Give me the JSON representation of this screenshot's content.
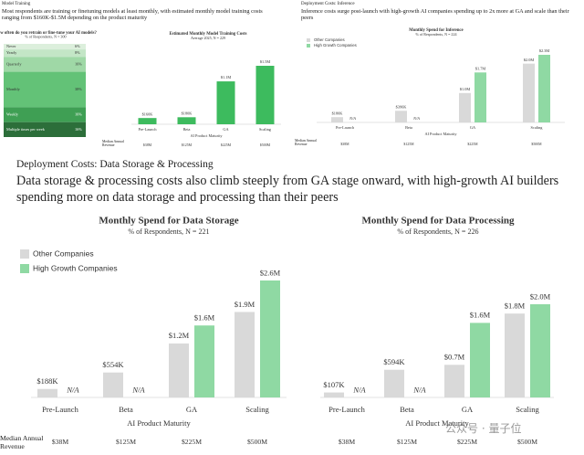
{
  "sections": [
    {
      "label": "Model Training",
      "heading": "Most respondents are training or finetuning models at least monthly, with estimated monthly model training costs ranging from $160K-$1.5M depending on the product maturity"
    },
    {
      "label": "Deployment Costs: Inference",
      "heading": "Inference costs surge post-launch with high-growth AI companies spending up to 2x more at GA and scale than their peers"
    },
    {
      "label": "Deployment Costs: Data Storage & Processing",
      "heading": "Data storage & processing costs also climb steeply from GA stage onward, with high-growth AI builders spending more on data storage and processing than their peers"
    }
  ],
  "watermark": "公众号 · 量子位",
  "chart_data": [
    {
      "type": "stack",
      "title": "How often do you retrain or fine-tune your AI models?",
      "subtitle": "% of Respondents, N = 300",
      "categories": [
        "Never",
        "Yearly",
        "Quarterly",
        "Monthly",
        "Weekly",
        "Multiple times per week"
      ],
      "values": [
        6,
        8,
        16,
        38,
        16,
        16
      ],
      "value_labels": [
        "6%",
        "8%",
        "16%",
        "38%",
        "16%",
        "16%"
      ],
      "colors": [
        "#dcefdc",
        "#c3e6c6",
        "#9fd8a6",
        "#63c277",
        "#3f9f54",
        "#2c6e3a"
      ]
    },
    {
      "type": "bar",
      "title": "Estimated Monthly Model Training Costs",
      "subtitle": "Average 2025, N = 229",
      "categories": [
        "Pre-Launch",
        "Beta",
        "GA",
        "Scaling"
      ],
      "x_label": "AI Product Maturity",
      "values": [
        160000,
        180000,
        1100000,
        1500000
      ],
      "value_labels": [
        "$160K",
        "$180K",
        "$1.1M",
        "$1.5M"
      ],
      "color": "#3dbb5e",
      "revenue_label": "Median Annual Revenue",
      "revenue": [
        "$38M",
        "$125M",
        "$225M",
        "$500M"
      ]
    },
    {
      "type": "grouped_bar",
      "title": "Monthly Spend for Inference",
      "subtitle": "% of Respondents, N = 224",
      "categories": [
        "Pre-Launch",
        "Beta",
        "GA",
        "Scaling"
      ],
      "x_label": "AI Product Maturity",
      "series": [
        {
          "name": "Other Companies",
          "color": "#d9d9d9",
          "values": [
            180000,
            396000,
            1000000,
            2000000
          ],
          "value_labels": [
            "$180K",
            "$396K",
            "$1.0M",
            "$2.0M"
          ]
        },
        {
          "name": "High Growth Companies",
          "color": "#8fd9a3",
          "values": [
            null,
            null,
            1700000,
            2300000
          ],
          "value_labels": [
            "N/A",
            "N/A",
            "$1.7M",
            "$2.3M"
          ]
        }
      ],
      "revenue_label": "Median Annual Revenue",
      "revenue": [
        "$38M",
        "$125M",
        "$225M",
        "$500M"
      ]
    },
    {
      "type": "grouped_bar",
      "title": "Monthly Spend for Data Storage",
      "subtitle": "% of Respondents, N = 221",
      "categories": [
        "Pre-Launch",
        "Beta",
        "GA",
        "Scaling"
      ],
      "x_label": "AI Product Maturity",
      "series": [
        {
          "name": "Other Companies",
          "color": "#d9d9d9",
          "values": [
            188000,
            554000,
            1200000,
            1900000
          ],
          "value_labels": [
            "$188K",
            "$554K",
            "$1.2M",
            "$1.9M"
          ]
        },
        {
          "name": "High Growth Companies",
          "color": "#8fd9a3",
          "values": [
            null,
            null,
            1600000,
            2600000
          ],
          "value_labels": [
            "N/A",
            "N/A",
            "$1.6M",
            "$2.6M"
          ]
        }
      ],
      "revenue_label": "Median Annual Revenue",
      "revenue": [
        "$38M",
        "$125M",
        "$225M",
        "$500M"
      ]
    },
    {
      "type": "grouped_bar",
      "title": "Monthly Spend for Data Processing",
      "subtitle": "% of Respondents, N = 226",
      "categories": [
        "Pre-Launch",
        "Beta",
        "GA",
        "Scaling"
      ],
      "x_label": "AI Product Maturity",
      "series": [
        {
          "color": "#d9d9d9",
          "values": [
            107000,
            594000,
            700000,
            1800000
          ],
          "value_labels": [
            "$107K",
            "$594K",
            "$0.7M",
            "$1.8M"
          ]
        },
        {
          "color": "#8fd9a3",
          "values": [
            null,
            null,
            1600000,
            2000000
          ],
          "value_labels": [
            "N/A",
            "N/A",
            "$1.6M",
            "$2.0M"
          ]
        }
      ],
      "revenue": [
        "$38M",
        "$125M",
        "$225M",
        "$500M"
      ]
    }
  ]
}
